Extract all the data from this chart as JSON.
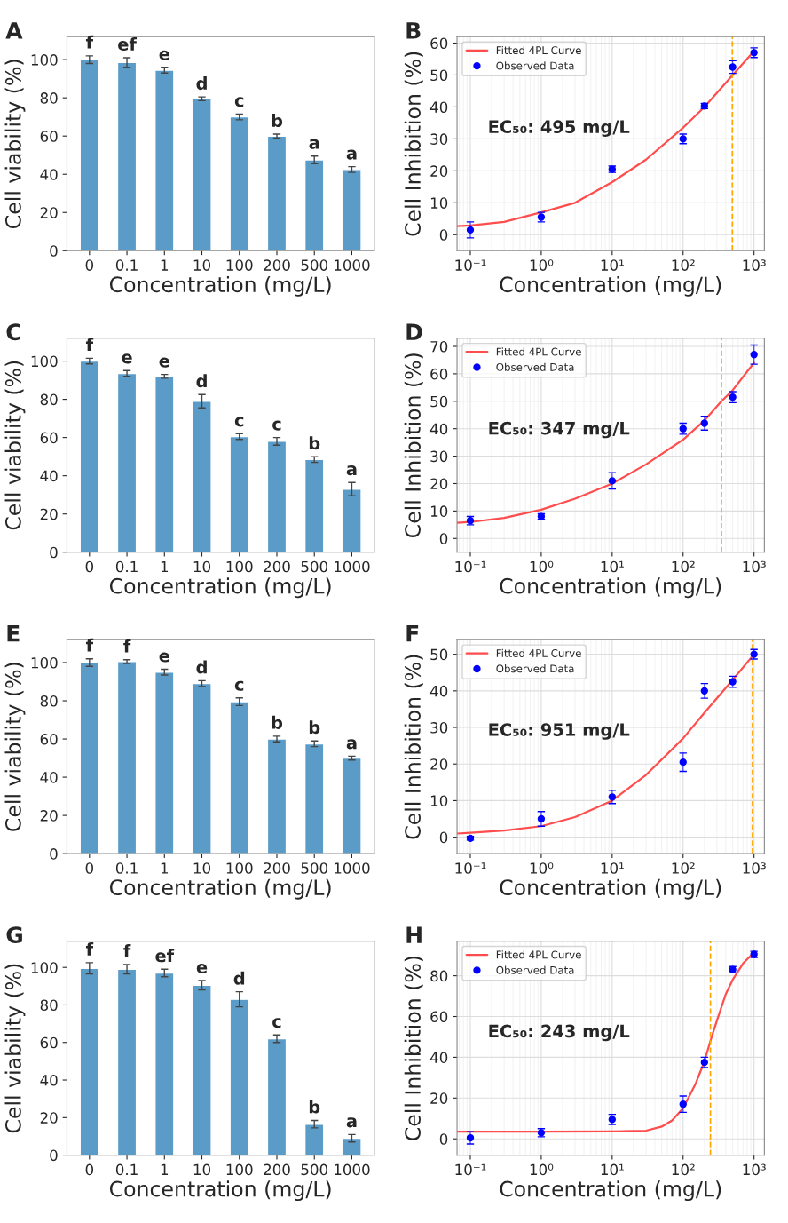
{
  "chart_data": [
    {
      "type": "bar",
      "title": "A",
      "xlabel": "Concentration (mg/L)",
      "ylabel": "Cell viability (%)",
      "categories": [
        "0",
        "0.1",
        "1",
        "10",
        "100",
        "200",
        "500",
        "1000"
      ],
      "color": "#5b9bc8",
      "values": [
        100,
        98.5,
        94.5,
        79.5,
        70,
        60,
        47.5,
        42.5
      ],
      "errors": [
        2,
        2.5,
        1.5,
        1,
        1.5,
        1,
        2,
        1.5
      ],
      "value_labels": [
        "f",
        "ef",
        "e",
        "d",
        "c",
        "b",
        "a",
        "a"
      ],
      "ylim": [
        0,
        112
      ],
      "yticks": [
        0,
        20,
        40,
        60,
        80,
        100
      ]
    },
    {
      "type": "line",
      "title": "B",
      "xlabel": "Concentration (mg/L)",
      "ylabel": "Cell Inhibition (%)",
      "log": "x",
      "grid": true,
      "legend": "top left",
      "xlim": [
        0.065,
        1400
      ],
      "xticks": [
        {
          "value": 0.1,
          "label": "10⁻¹"
        },
        {
          "value": 1,
          "label": "10⁰"
        },
        {
          "value": 10,
          "label": "10¹"
        },
        {
          "value": 100,
          "label": "10²"
        },
        {
          "value": 1000,
          "label": "10³"
        }
      ],
      "ylim": [
        -5,
        62
      ],
      "yticks": [
        0,
        10,
        20,
        30,
        40,
        50,
        60
      ],
      "annotations": [
        "EC₅₀: 495 mg/L"
      ],
      "ref_lines": [
        {
          "axis": "x",
          "value": 495,
          "color": "#ffa500",
          "line_style": "dashed"
        }
      ],
      "series": [
        {
          "name": "Fitted 4PL Curve",
          "type": "line",
          "color": "#ff4d4d",
          "marker": "none",
          "x": [
            0.065,
            0.1,
            0.3,
            1,
            3,
            10,
            30,
            100,
            200,
            500,
            1000
          ],
          "values": [
            2.7,
            2.9,
            4,
            7,
            10,
            16.5,
            23.5,
            33.5,
            40,
            50,
            57.5
          ]
        },
        {
          "name": "Observed Data",
          "type": "scatter",
          "color": "#0000ff",
          "marker": "circle",
          "x": [
            0.1,
            1,
            10,
            100,
            200,
            500,
            1000
          ],
          "values": [
            1.5,
            5.5,
            20.5,
            30,
            40.3,
            52.5,
            57
          ],
          "errors": [
            2.5,
            1.5,
            1,
            1.5,
            0.8,
            2,
            1.5
          ]
        }
      ]
    },
    {
      "type": "bar",
      "title": "C",
      "xlabel": "Concentration (mg/L)",
      "ylabel": "Cell viability (%)",
      "categories": [
        "0",
        "0.1",
        "1",
        "10",
        "100",
        "200",
        "500",
        "1000"
      ],
      "color": "#5b9bc8",
      "values": [
        100,
        93.5,
        92,
        79,
        60.5,
        58,
        48.5,
        33
      ],
      "errors": [
        1.5,
        1.5,
        1,
        3.5,
        1.5,
        2,
        1.5,
        3.5
      ],
      "value_labels": [
        "f",
        "e",
        "e",
        "d",
        "c",
        "c",
        "b",
        "a"
      ],
      "ylim": [
        0,
        112
      ],
      "yticks": [
        0,
        20,
        40,
        60,
        80,
        100
      ]
    },
    {
      "type": "line",
      "title": "D",
      "xlabel": "Concentration (mg/L)",
      "ylabel": "Cell Inhibition (%)",
      "log": "x",
      "grid": true,
      "legend": "top left",
      "xlim": [
        0.065,
        1400
      ],
      "xticks": [
        {
          "value": 0.1,
          "label": "10⁻¹"
        },
        {
          "value": 1,
          "label": "10⁰"
        },
        {
          "value": 10,
          "label": "10¹"
        },
        {
          "value": 100,
          "label": "10²"
        },
        {
          "value": 1000,
          "label": "10³"
        }
      ],
      "ylim": [
        -5,
        73
      ],
      "yticks": [
        0,
        10,
        20,
        30,
        40,
        50,
        60,
        70
      ],
      "annotations": [
        "EC₅₀: 347 mg/L"
      ],
      "ref_lines": [
        {
          "axis": "x",
          "value": 347,
          "color": "#ffa500",
          "line_style": "dashed"
        }
      ],
      "series": [
        {
          "name": "Fitted 4PL Curve",
          "type": "line",
          "color": "#ff4d4d",
          "marker": "none",
          "x": [
            0.065,
            0.1,
            0.3,
            1,
            3,
            10,
            30,
            100,
            200,
            347,
            500,
            1000
          ],
          "values": [
            5.7,
            6,
            7.5,
            10.5,
            14.5,
            20,
            27,
            36,
            43,
            50,
            54,
            64
          ]
        },
        {
          "name": "Observed Data",
          "type": "scatter",
          "color": "#0000ff",
          "marker": "circle",
          "x": [
            0.1,
            1,
            10,
            100,
            200,
            500,
            1000
          ],
          "values": [
            6.5,
            8,
            21,
            40,
            42,
            51.5,
            67
          ],
          "errors": [
            1.5,
            1,
            3,
            2,
            2.5,
            2,
            3.5
          ]
        }
      ]
    },
    {
      "type": "bar",
      "title": "E",
      "xlabel": "Concentration (mg/L)",
      "ylabel": "Cell viability (%)",
      "categories": [
        "0",
        "0.1",
        "1",
        "10",
        "100",
        "200",
        "500",
        "1000"
      ],
      "color": "#5b9bc8",
      "values": [
        100,
        100.5,
        95,
        89,
        79.5,
        60,
        57.5,
        50
      ],
      "errors": [
        2,
        1,
        1.5,
        1.5,
        2,
        1.5,
        1.5,
        1
      ],
      "value_labels": [
        "f",
        "f",
        "e",
        "d",
        "c",
        "b",
        "b",
        "a"
      ],
      "ylim": [
        0,
        112
      ],
      "yticks": [
        0,
        20,
        40,
        60,
        80,
        100
      ]
    },
    {
      "type": "line",
      "title": "F",
      "xlabel": "Concentration (mg/L)",
      "ylabel": "Cell Inhibition (%)",
      "log": "x",
      "grid": true,
      "legend": "top left",
      "xlim": [
        0.065,
        1400
      ],
      "xticks": [
        {
          "value": 0.1,
          "label": "10⁻¹"
        },
        {
          "value": 1,
          "label": "10⁰"
        },
        {
          "value": 10,
          "label": "10¹"
        },
        {
          "value": 100,
          "label": "10²"
        },
        {
          "value": 1000,
          "label": "10³"
        }
      ],
      "ylim": [
        -4.5,
        54
      ],
      "yticks": [
        0,
        10,
        20,
        30,
        40,
        50
      ],
      "annotations": [
        "EC₅₀: 951 mg/L"
      ],
      "ref_lines": [
        {
          "axis": "x",
          "value": 951,
          "color": "#ffa500",
          "line_style": "dashed"
        }
      ],
      "series": [
        {
          "name": "Fitted 4PL Curve",
          "type": "line",
          "color": "#ff4d4d",
          "marker": "none",
          "x": [
            0.065,
            0.1,
            0.3,
            1,
            3,
            10,
            30,
            100,
            200,
            500,
            1000
          ],
          "values": [
            1,
            1.2,
            1.8,
            3,
            5.5,
            10,
            17,
            27,
            34,
            43,
            50
          ]
        },
        {
          "name": "Observed Data",
          "type": "scatter",
          "color": "#0000ff",
          "marker": "circle",
          "x": [
            0.1,
            1,
            10,
            100,
            200,
            500,
            1000
          ],
          "values": [
            -0.3,
            5,
            11,
            20.5,
            40,
            42.5,
            50
          ],
          "errors": [
            0.5,
            2,
            1.8,
            2.5,
            2,
            1.5,
            1.3
          ]
        }
      ]
    },
    {
      "type": "bar",
      "title": "G",
      "xlabel": "Concentration (mg/L)",
      "ylabel": "Cell viability (%)",
      "categories": [
        "0",
        "0.1",
        "1",
        "10",
        "100",
        "200",
        "500",
        "1000"
      ],
      "color": "#5b9bc8",
      "values": [
        99.5,
        99,
        97,
        90.5,
        83,
        62,
        16.5,
        9
      ],
      "errors": [
        3,
        2.5,
        2,
        2.5,
        4,
        2,
        2,
        2
      ],
      "value_labels": [
        "f",
        "f",
        "ef",
        "e",
        "d",
        "c",
        "b",
        "a"
      ],
      "ylim": [
        0,
        114
      ],
      "yticks": [
        0,
        20,
        40,
        60,
        80,
        100
      ]
    },
    {
      "type": "line",
      "title": "H",
      "xlabel": "Concentration (mg/L)",
      "ylabel": "Cell Inhibition (%)",
      "log": "x",
      "grid": true,
      "legend": "top left",
      "xlim": [
        0.065,
        1400
      ],
      "xticks": [
        {
          "value": 0.1,
          "label": "10⁻¹"
        },
        {
          "value": 1,
          "label": "10⁰"
        },
        {
          "value": 10,
          "label": "10¹"
        },
        {
          "value": 100,
          "label": "10²"
        },
        {
          "value": 1000,
          "label": "10³"
        }
      ],
      "ylim": [
        -8,
        97
      ],
      "yticks": [
        0,
        20,
        40,
        60,
        80
      ],
      "annotations": [
        "EC₅₀: 243 mg/L"
      ],
      "ref_lines": [
        {
          "axis": "x",
          "value": 243,
          "color": "#ffa500",
          "line_style": "dashed"
        }
      ],
      "series": [
        {
          "name": "Fitted 4PL Curve",
          "type": "line",
          "color": "#ff4d4d",
          "marker": "none",
          "x": [
            0.065,
            1,
            10,
            30,
            50,
            70,
            100,
            150,
            200,
            243,
            300,
            400,
            500,
            700,
            1000
          ],
          "values": [
            3.5,
            3.5,
            3.6,
            4,
            6,
            9,
            15,
            27,
            38,
            48,
            58,
            71,
            78,
            86,
            91.5
          ]
        },
        {
          "name": "Observed Data",
          "type": "scatter",
          "color": "#0000ff",
          "marker": "circle",
          "x": [
            0.1,
            1,
            10,
            100,
            200,
            500,
            1000
          ],
          "values": [
            0.5,
            3,
            9.5,
            17,
            37.5,
            83,
            90.5
          ],
          "errors": [
            3,
            2,
            2.5,
            4,
            2.5,
            1.5,
            1.5
          ]
        }
      ]
    }
  ]
}
